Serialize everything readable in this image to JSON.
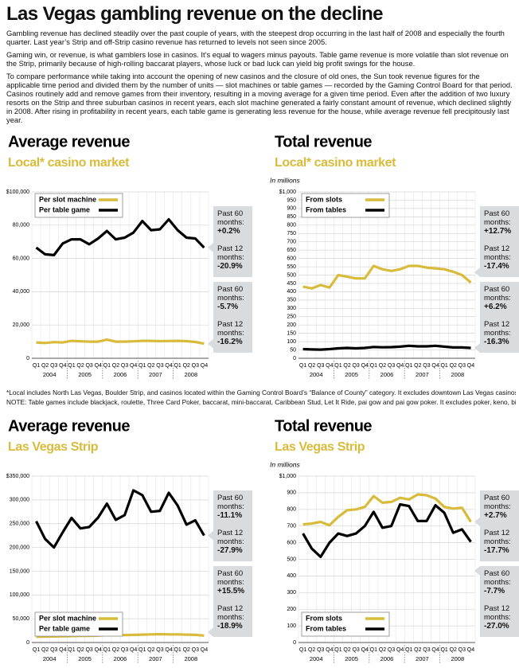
{
  "title": "Las Vegas gambling revenue on the decline",
  "paragraphs": [
    "Gambling revenue has declined steadily over the past couple of years, with the steepest drop occurring in the last half of 2008 and especially the fourth quarter. Last year’s Strip and off-Strip casino revenue has returned to levels not seen since 2005.",
    "Gaming win, or revenue, is what gamblers lose in casinos. It’s equal to wagers minus payouts. Table game revenue is more volatile than slot revenue on the Strip, primarily because of high-rolling baccarat players, whose luck or bad luck can yield big profit swings for the house.",
    "To compare performance while taking into account the opening of new casinos and the closure of old ones, the Sun took revenue figures for the applicable time period and divided them by the number of units — slot machines or table games — recorded by the Gaming Control Board for that period. Casinos routinely add and remove games from their inventory, resulting in a moving average for a given time period. Even after the addition of two luxury resorts on the Strip and three suburban casinos in recent years, each slot machine generated a fairly constant amount of revenue, which declined slightly in 2008. After rising in profitability in recent years, each table game is generating less revenue for the house, while average revenue fell precipitously last year."
  ],
  "footnote": "*Local includes North Las Vegas, Boulder Strip, and casinos located within the Gaming Control Board’s “Balance of County” category. It excludes downtown Las Vegas casinos.",
  "note": "NOTE: Table games include blackjack, roulette, Three Card Poker, baccarat, mini-baccarat, Caribbean Stud, Let It Ride, pai gow and pai gow poker. It excludes poker, keno, bingo, sports",
  "chart_data": [
    {
      "type": "line",
      "title": "Average revenue",
      "subtitle": "Local* casino market",
      "categories": [
        "Q1",
        "Q2",
        "Q3",
        "Q4",
        "Q1",
        "Q2",
        "Q3",
        "Q4",
        "Q1",
        "Q2",
        "Q3",
        "Q4",
        "Q1",
        "Q2",
        "Q3",
        "Q4",
        "Q1",
        "Q2",
        "Q3",
        "Q4"
      ],
      "years": [
        "2004",
        "2005",
        "2006",
        "2007",
        "2008"
      ],
      "ylim": [
        0,
        100000
      ],
      "yticks": [
        0,
        {
          "value": 20000,
          "label": "20,000"
        },
        {
          "value": 40000,
          "label": "40,000"
        },
        {
          "value": 60000,
          "label": "60,000"
        },
        {
          "value": 80000,
          "label": "80,000"
        },
        {
          "value": 100000,
          "label": "$100,000"
        }
      ],
      "grid": true,
      "legend": "top-left",
      "series": [
        {
          "name": "Per slot machine",
          "color": "#d9bb3b",
          "values": [
            9500,
            9200,
            9700,
            9500,
            10500,
            10200,
            10000,
            10000,
            11200,
            10000,
            10000,
            10200,
            10500,
            10500,
            10300,
            10400,
            10500,
            10300,
            9800,
            8800
          ],
          "callouts": [
            {
              "label": "Past 60 months:",
              "value": "-5.7%"
            },
            {
              "label": "Past 12 months:",
              "value": "-16.2%"
            }
          ]
        },
        {
          "name": "Per table game",
          "color": "#000000",
          "values": [
            66500,
            62500,
            62000,
            69000,
            71500,
            71500,
            68500,
            72000,
            76500,
            71500,
            72500,
            75500,
            82500,
            77000,
            77500,
            83500,
            77000,
            72500,
            72000,
            66500
          ],
          "callouts": [
            {
              "label": "Past 60 months:",
              "value": "+0.2%"
            },
            {
              "label": "Past 12 months:",
              "value": "-20.9%"
            }
          ]
        }
      ]
    },
    {
      "type": "line",
      "title": "Total revenue",
      "subtitle": "Local* casino market",
      "y_label": "In millions",
      "categories": [
        "Q1",
        "Q2",
        "Q3",
        "Q4",
        "Q1",
        "Q2",
        "Q3",
        "Q4",
        "Q1",
        "Q2",
        "Q3",
        "Q4",
        "Q1",
        "Q2",
        "Q3",
        "Q4",
        "Q1",
        "Q2",
        "Q3",
        "Q4"
      ],
      "years": [
        "2004",
        "2005",
        "2006",
        "2007",
        "2008"
      ],
      "ylim": [
        0,
        1000
      ],
      "yticks": [
        0,
        50,
        100,
        150,
        200,
        250,
        300,
        350,
        400,
        450,
        500,
        550,
        600,
        650,
        700,
        750,
        800,
        850,
        900,
        950,
        {
          "value": 1000,
          "label": "$1,000"
        }
      ],
      "grid": true,
      "legend": "top-left",
      "series": [
        {
          "name": "From slots",
          "color": "#d9bb3b",
          "values": [
            430,
            420,
            440,
            425,
            500,
            490,
            480,
            480,
            555,
            535,
            525,
            535,
            555,
            555,
            545,
            540,
            535,
            520,
            500,
            455
          ],
          "callouts": [
            {
              "label": "Past 60 months:",
              "value": "+12.7%"
            },
            {
              "label": "Past 12 months:",
              "value": "-17.4%"
            }
          ]
        },
        {
          "name": "From tables",
          "color": "#000000",
          "values": [
            55,
            53,
            52,
            55,
            60,
            62,
            60,
            62,
            68,
            66,
            67,
            70,
            75,
            72,
            72,
            75,
            70,
            65,
            65,
            62
          ],
          "callouts": [
            {
              "label": "Past 60 months:",
              "value": "+6.2%"
            },
            {
              "label": "Past 12 months:",
              "value": "-16.3%"
            }
          ]
        }
      ]
    },
    {
      "type": "line",
      "title": "Average revenue",
      "subtitle": "Las Vegas Strip",
      "categories": [
        "Q1",
        "Q2",
        "Q3",
        "Q4",
        "Q1",
        "Q2",
        "Q3",
        "Q4",
        "Q1",
        "Q2",
        "Q3",
        "Q4",
        "Q1",
        "Q2",
        "Q3",
        "Q4",
        "Q1",
        "Q2",
        "Q3",
        "Q4"
      ],
      "years": [
        "2004",
        "2005",
        "2006",
        "2007",
        "2008"
      ],
      "ylim": [
        0,
        350000
      ],
      "yticks": [
        0,
        {
          "value": 50000,
          "label": "50,000"
        },
        {
          "value": 100000,
          "label": "100,000"
        },
        {
          "value": 150000,
          "label": "150,000"
        },
        {
          "value": 200000,
          "label": "200,000"
        },
        {
          "value": 250000,
          "label": "250,000"
        },
        {
          "value": 300000,
          "label": "300,000"
        },
        {
          "value": 350000,
          "label": "$350,000"
        }
      ],
      "grid": true,
      "legend": "bottom-left",
      "series": [
        {
          "name": "Per slot machine",
          "color": "#d9bb3b",
          "values": [
            12000,
            12500,
            12800,
            13000,
            13500,
            14000,
            14000,
            14500,
            16000,
            15500,
            15500,
            16000,
            16500,
            17000,
            17500,
            17000,
            17000,
            16500,
            16000,
            14500
          ],
          "callouts": [
            {
              "label": "Past 60 months:",
              "value": "+15.5%"
            },
            {
              "label": "Past 12 months:",
              "value": "-18.9%"
            }
          ]
        },
        {
          "name": "Per table game",
          "color": "#000000",
          "values": [
            255000,
            218000,
            200000,
            232000,
            262000,
            240000,
            243000,
            263000,
            292000,
            258000,
            268000,
            320000,
            310000,
            275000,
            277000,
            315000,
            288000,
            248000,
            257000,
            225000
          ],
          "callouts": [
            {
              "label": "Past 60 months:",
              "value": "-11.1%"
            },
            {
              "label": "Past 12 months:",
              "value": "-27.9%"
            }
          ]
        }
      ]
    },
    {
      "type": "line",
      "title": "Total revenue",
      "subtitle": "Las Vegas Strip",
      "y_label": "In millions",
      "categories": [
        "Q1",
        "Q2",
        "Q3",
        "Q4",
        "Q1",
        "Q2",
        "Q3",
        "Q4",
        "Q1",
        "Q2",
        "Q3",
        "Q4",
        "Q1",
        "Q2",
        "Q3",
        "Q4",
        "Q1",
        "Q2",
        "Q3",
        "Q4"
      ],
      "years": [
        "2004",
        "2005",
        "2006",
        "2007",
        "2008"
      ],
      "ylim": [
        0,
        1000
      ],
      "yticks": [
        0,
        100,
        200,
        300,
        400,
        500,
        600,
        700,
        800,
        900,
        {
          "value": 1000,
          "label": "$1,000"
        }
      ],
      "grid": true,
      "legend": "bottom-left",
      "series": [
        {
          "name": "From slots",
          "color": "#d9bb3b",
          "values": [
            710,
            715,
            725,
            705,
            755,
            795,
            800,
            815,
            880,
            840,
            845,
            870,
            860,
            890,
            885,
            865,
            815,
            805,
            810,
            725
          ],
          "callouts": [
            {
              "label": "Past 60 months:",
              "value": "+2.7%"
            },
            {
              "label": "Past 12 months:",
              "value": "-17.7%"
            }
          ]
        },
        {
          "name": "From tables",
          "color": "#000000",
          "values": [
            655,
            565,
            515,
            600,
            655,
            640,
            655,
            700,
            785,
            690,
            700,
            830,
            820,
            730,
            730,
            825,
            780,
            660,
            680,
            605
          ],
          "callouts": [
            {
              "label": "Past 60 months:",
              "value": "-7.7%"
            },
            {
              "label": "Past 12 months:",
              "value": "-27.0%"
            }
          ]
        }
      ]
    }
  ]
}
